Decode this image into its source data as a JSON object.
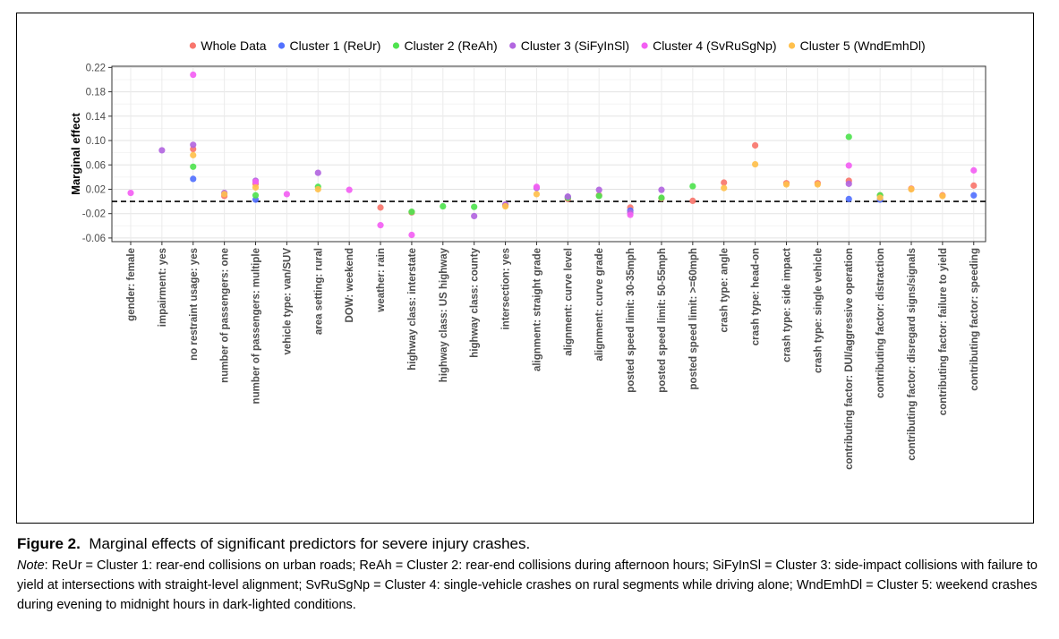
{
  "chart_data": {
    "type": "scatter",
    "title": "",
    "ylabel": "Marginal effect",
    "xlabel": "",
    "ylim": [
      -0.066,
      0.222
    ],
    "yticks": [
      -0.06,
      -0.02,
      0.02,
      0.06,
      0.1,
      0.14,
      0.18,
      0.22
    ],
    "ytick_labels": [
      "-0.06",
      "-0.02",
      "0.02",
      "0.06",
      "0.10",
      "0.14",
      "0.18",
      "0.22"
    ],
    "reference_line": 0,
    "grid": true,
    "legend_position": "top",
    "categories": [
      "gender: female",
      "impairment: yes",
      "no restraint usage: yes",
      "number of passengers: one",
      "number of passengers: multiple",
      "vehicle type: van/SUV",
      "area setting: rural",
      "DOW: weekend",
      "weather: rain",
      "highway class: interstate",
      "highway class: US highway",
      "highway class: county",
      "intersection: yes",
      "alignment: straight grade",
      "alignment: curve level",
      "alignment: curve grade",
      "posted speed limit: 30-35mph",
      "posted speed limit: 50-55mph",
      "posted speed limit: >=60mph",
      "crash type: angle",
      "crash type: head-on",
      "crash type: side impact",
      "crash type: single vehicle",
      "contributing factor: DUI/aggressive operation",
      "contributing factor: distraction",
      "contributing factor: disregard signs/signals",
      "contributing factor: failure to yield",
      "contributing factor: speeding"
    ],
    "series": [
      {
        "name": "Whole Data",
        "color": "#F8766D",
        "points": [
          [
            2,
            0.086
          ],
          [
            3,
            0.009
          ],
          [
            4,
            0.029
          ],
          [
            8,
            -0.01
          ],
          [
            9,
            -0.018
          ],
          [
            12,
            -0.006
          ],
          [
            14,
            0.004
          ],
          [
            15,
            0.01
          ],
          [
            16,
            -0.01
          ],
          [
            17,
            0.005
          ],
          [
            18,
            0.001
          ],
          [
            19,
            0.031
          ],
          [
            20,
            0.092
          ],
          [
            21,
            0.03
          ],
          [
            22,
            0.03
          ],
          [
            23,
            0.034
          ],
          [
            24,
            0.01
          ],
          [
            25,
            0.021
          ],
          [
            26,
            0.01
          ],
          [
            27,
            0.026
          ]
        ]
      },
      {
        "name": "Cluster 1 (ReUr)",
        "color": "#5271FF",
        "points": [
          [
            2,
            0.037
          ],
          [
            4,
            0.003
          ],
          [
            14,
            0.007
          ],
          [
            16,
            -0.015
          ],
          [
            23,
            0.004
          ],
          [
            24,
            0.003
          ],
          [
            27,
            0.01
          ]
        ]
      },
      {
        "name": "Cluster 2 (ReAh)",
        "color": "#4FE34F",
        "points": [
          [
            2,
            0.057
          ],
          [
            4,
            0.01
          ],
          [
            6,
            0.024
          ],
          [
            9,
            -0.017
          ],
          [
            10,
            -0.008
          ],
          [
            11,
            -0.009
          ],
          [
            14,
            0.006
          ],
          [
            15,
            0.009
          ],
          [
            17,
            0.006
          ],
          [
            18,
            0.025
          ],
          [
            23,
            0.106
          ],
          [
            24,
            0.01
          ]
        ]
      },
      {
        "name": "Cluster 3 (SiFyInSl)",
        "color": "#B266E0",
        "points": [
          [
            1,
            0.084
          ],
          [
            2,
            0.093
          ],
          [
            3,
            0.014
          ],
          [
            4,
            0.034
          ],
          [
            6,
            0.047
          ],
          [
            11,
            -0.024
          ],
          [
            12,
            -0.005
          ],
          [
            13,
            0.022
          ],
          [
            14,
            0.008
          ],
          [
            15,
            0.019
          ],
          [
            16,
            -0.018
          ],
          [
            17,
            0.019
          ],
          [
            23,
            0.029
          ]
        ]
      },
      {
        "name": "Cluster 4 (SvRuSgNp)",
        "color": "#F35FF3",
        "points": [
          [
            0,
            0.014
          ],
          [
            2,
            0.208
          ],
          [
            4,
            0.032
          ],
          [
            5,
            0.012
          ],
          [
            7,
            0.019
          ],
          [
            8,
            -0.039
          ],
          [
            9,
            -0.055
          ],
          [
            13,
            0.024
          ],
          [
            16,
            -0.022
          ],
          [
            23,
            0.059
          ],
          [
            27,
            0.051
          ]
        ]
      },
      {
        "name": "Cluster 5 (WndEmhDl)",
        "color": "#FFC04C",
        "points": [
          [
            2,
            0.076
          ],
          [
            3,
            0.012
          ],
          [
            4,
            0.023
          ],
          [
            6,
            0.02
          ],
          [
            12,
            -0.008
          ],
          [
            13,
            0.012
          ],
          [
            19,
            0.022
          ],
          [
            20,
            0.061
          ],
          [
            21,
            0.028
          ],
          [
            22,
            0.028
          ],
          [
            24,
            0.006
          ],
          [
            25,
            0.02
          ],
          [
            26,
            0.009
          ]
        ]
      }
    ]
  },
  "caption": {
    "label": "Figure 2.",
    "title": "Marginal effects of significant predictors for severe injury crashes.",
    "note_label": "Note",
    "note": ": ReUr = Cluster 1: rear-end collisions on urban roads; ReAh = Cluster 2: rear-end collisions during afternoon hours; SiFyInSl = Cluster 3: side-impact collisions with failure to yield at intersections with straight-level alignment; SvRuSgNp = Cluster 4: single-vehicle crashes on rural segments while driving alone; WndEmhDl = Cluster 5: weekend crashes during evening to midnight hours in dark-lighted conditions."
  }
}
